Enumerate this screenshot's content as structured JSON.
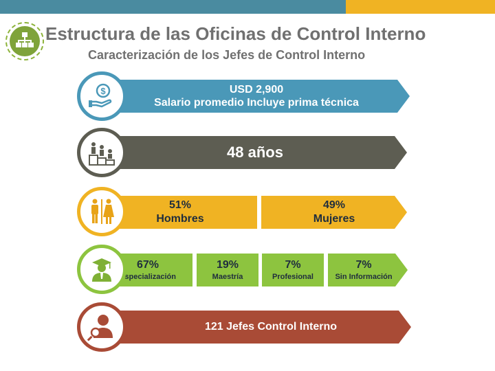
{
  "header": {
    "title": "Estructura de las Oficinas de Control Interno",
    "subtitle": "Caracterización de los Jefes de Control Interno"
  },
  "colors": {
    "blue": "#4a98b8",
    "dark": "#5d5d52",
    "yellow": "#f0b323",
    "green": "#8dc43f",
    "red": "#a94b36"
  },
  "salary": {
    "amount": "USD 2,900",
    "label": "Salario promedio Incluye prima técnica",
    "icon": "money-hand-icon"
  },
  "age": {
    "value": "48 años",
    "icon": "podium-people-icon"
  },
  "gender": {
    "icon": "male-female-icon",
    "items": [
      {
        "pct": "51%",
        "label": "Hombres"
      },
      {
        "pct": "49%",
        "label": "Mujeres"
      }
    ]
  },
  "education": {
    "icon": "graduate-icon",
    "items": [
      {
        "pct": "67%",
        "label": "Especialización"
      },
      {
        "pct": "19%",
        "label": "Maestría"
      },
      {
        "pct": "7%",
        "label": "Profesional"
      },
      {
        "pct": "7%",
        "label": "Sin Información"
      }
    ]
  },
  "total": {
    "label": "121 Jefes Control Interno",
    "icon": "person-search-icon"
  }
}
